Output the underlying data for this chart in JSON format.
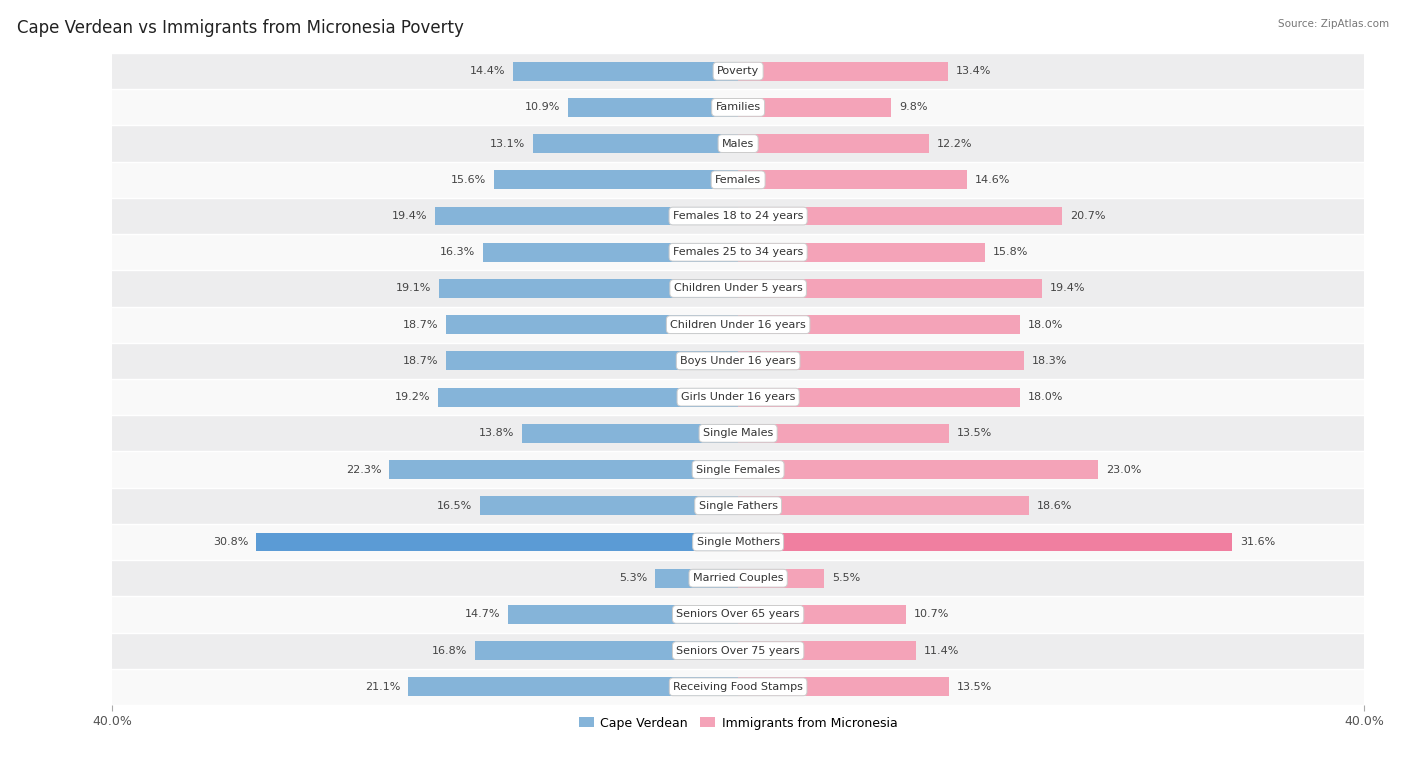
{
  "title": "Cape Verdean vs Immigrants from Micronesia Poverty",
  "source": "Source: ZipAtlas.com",
  "categories": [
    "Poverty",
    "Families",
    "Males",
    "Females",
    "Females 18 to 24 years",
    "Females 25 to 34 years",
    "Children Under 5 years",
    "Children Under 16 years",
    "Boys Under 16 years",
    "Girls Under 16 years",
    "Single Males",
    "Single Females",
    "Single Fathers",
    "Single Mothers",
    "Married Couples",
    "Seniors Over 65 years",
    "Seniors Over 75 years",
    "Receiving Food Stamps"
  ],
  "cape_verdean": [
    14.4,
    10.9,
    13.1,
    15.6,
    19.4,
    16.3,
    19.1,
    18.7,
    18.7,
    19.2,
    13.8,
    22.3,
    16.5,
    30.8,
    5.3,
    14.7,
    16.8,
    21.1
  ],
  "micronesia": [
    13.4,
    9.8,
    12.2,
    14.6,
    20.7,
    15.8,
    19.4,
    18.0,
    18.3,
    18.0,
    13.5,
    23.0,
    18.6,
    31.6,
    5.5,
    10.7,
    11.4,
    13.5
  ],
  "blue_color": "#85b4d9",
  "pink_color": "#f4a3b8",
  "single_mothers_blue": "#5b9bd5",
  "single_mothers_pink": "#f07fa0",
  "bg_row_light": "#ededee",
  "bg_row_white": "#f9f9f9",
  "bar_height": 0.52,
  "xlim": 40.0,
  "legend_label_blue": "Cape Verdean",
  "legend_label_pink": "Immigrants from Micronesia",
  "title_fontsize": 12,
  "label_fontsize": 8.0,
  "value_fontsize": 8.0,
  "axis_fontsize": 9,
  "figsize": [
    14.06,
    7.58
  ]
}
